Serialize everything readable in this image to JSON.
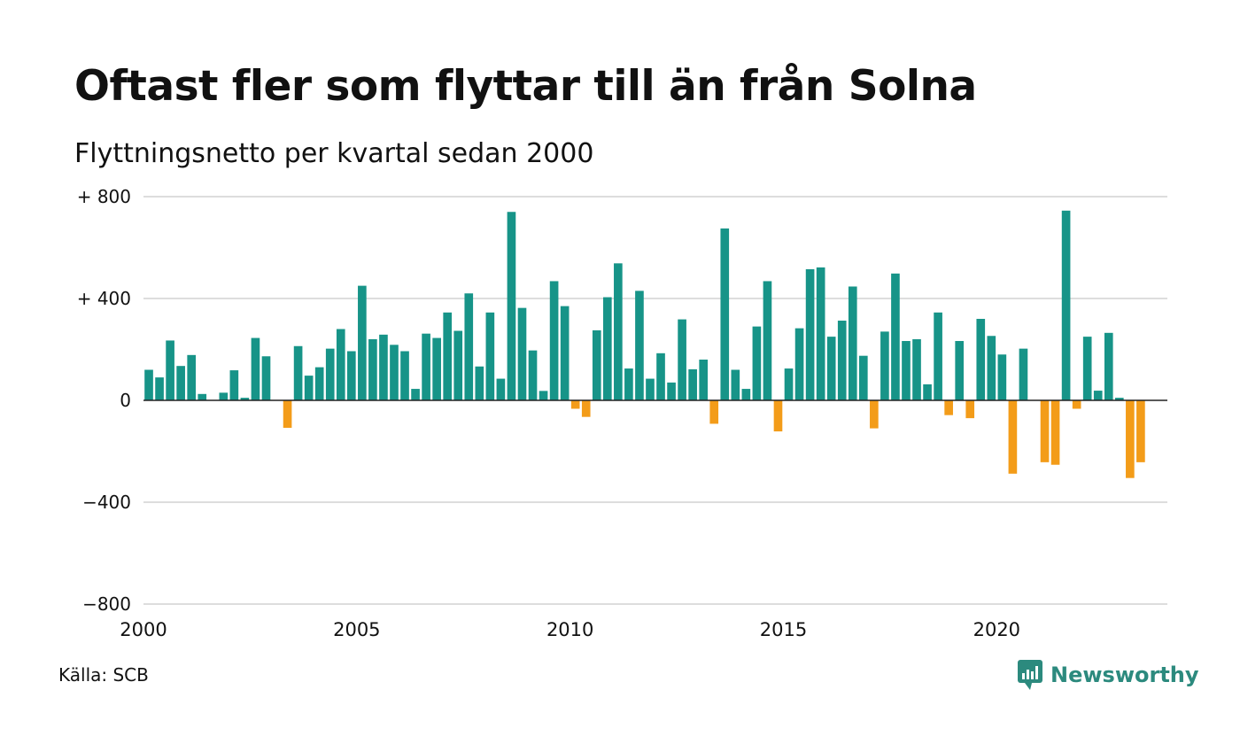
{
  "title": "Oftast fler som flyttar till än från Solna",
  "subtitle": "Flyttningsnetto per kvartal sedan 2000",
  "source": "Källa: SCB",
  "brand": "Newsworthy",
  "colors": {
    "positive": "#179488",
    "negative": "#f39c19",
    "grid": "#dddddd",
    "zero": "#222222",
    "brand": "#2c8a7e"
  },
  "chart_data": {
    "type": "bar",
    "x_start": "2000 Q1",
    "x_end": "2023 Q4",
    "ylim": [
      -800,
      800
    ],
    "yticks": [
      800,
      400,
      0,
      -400,
      -800
    ],
    "ytick_labels": [
      "+ 800",
      "+ 400",
      "0",
      "−400",
      "−800"
    ],
    "xticks": [
      2000,
      2005,
      2010,
      2015,
      2020
    ],
    "xtick_labels": [
      "2000",
      "2005",
      "2010",
      "2015",
      "2020"
    ],
    "grid": true,
    "values": [
      120,
      90,
      235,
      135,
      178,
      25,
      0,
      30,
      118,
      10,
      245,
      173,
      0,
      -108,
      213,
      97,
      130,
      203,
      280,
      193,
      450,
      240,
      258,
      218,
      193,
      45,
      262,
      245,
      345,
      273,
      420,
      133,
      345,
      85,
      740,
      363,
      196,
      37,
      468,
      370,
      -33,
      -65,
      275,
      405,
      538,
      125,
      430,
      85,
      185,
      70,
      318,
      122,
      160,
      -92,
      675,
      120,
      45,
      290,
      468,
      -122,
      125,
      283,
      515,
      522,
      250,
      313,
      447,
      175,
      -110,
      270,
      498,
      233,
      240,
      63,
      345,
      -58,
      233,
      -70,
      320,
      253,
      180,
      -288,
      203,
      0,
      -243,
      -253,
      745,
      -33,
      250,
      38,
      265,
      10,
      -305,
      -243,
      0,
      0
    ]
  }
}
